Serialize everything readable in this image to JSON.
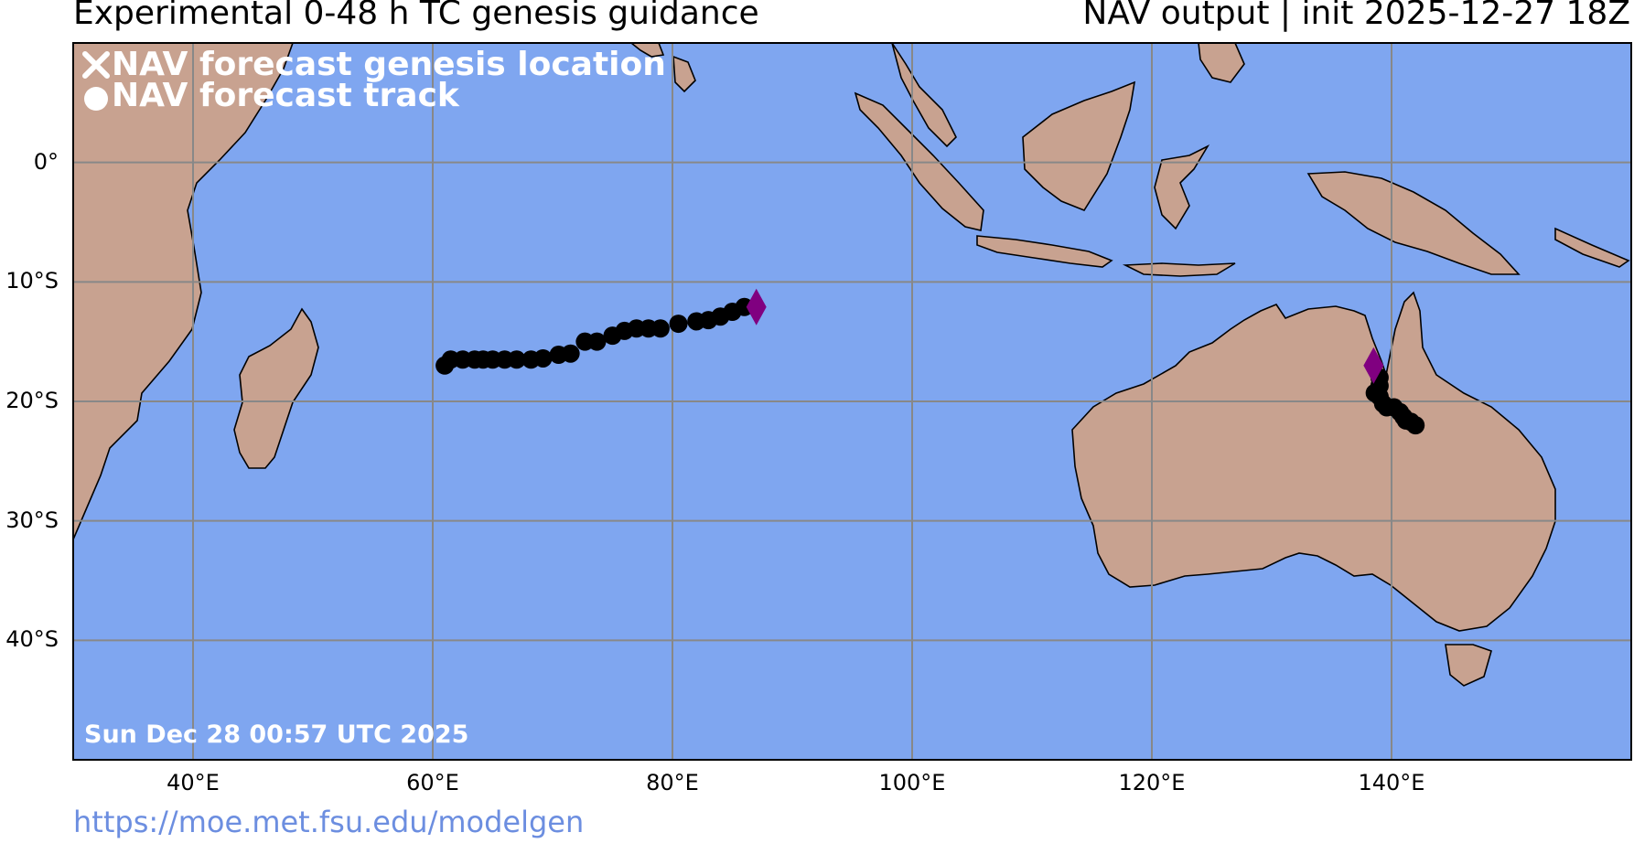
{
  "header": {
    "title_left": "Experimental 0-48 h TC genesis guidance",
    "title_right": "NAV output | init 2025-12-27 18Z"
  },
  "legend": {
    "genesis_label": "NAV forecast genesis location",
    "track_label": "NAV forecast track"
  },
  "timestamp": "Sun Dec 28 00:57 UTC 2025",
  "footer": {
    "url": "https://moe.met.fsu.edu/modelgen"
  },
  "map": {
    "lon_range": [
      30,
      160
    ],
    "lat_range": [
      -50,
      10
    ],
    "lat_ticks": [
      {
        "value": 0,
        "label": "0°"
      },
      {
        "value": -10,
        "label": "10°S"
      },
      {
        "value": -20,
        "label": "20°S"
      },
      {
        "value": -30,
        "label": "30°S"
      },
      {
        "value": -40,
        "label": "40°S"
      }
    ],
    "lon_ticks": [
      {
        "value": 40,
        "label": "40°E"
      },
      {
        "value": 60,
        "label": "60°E"
      },
      {
        "value": 80,
        "label": "80°E"
      },
      {
        "value": 100,
        "label": "100°E"
      },
      {
        "value": 120,
        "label": "120°E"
      },
      {
        "value": 140,
        "label": "140°E"
      }
    ],
    "colors": {
      "ocean": "#7fa6f0",
      "land": "#c8a290",
      "track": "#000000",
      "genesis_marker": "#800080",
      "grid": "#888888"
    },
    "tracks": [
      {
        "genesis": {
          "lon": 87.0,
          "lat": -12.1
        },
        "points": [
          [
            86.0,
            -12.1
          ],
          [
            85.0,
            -12.5
          ],
          [
            84.0,
            -12.9
          ],
          [
            83.0,
            -13.2
          ],
          [
            82.0,
            -13.3
          ],
          [
            80.5,
            -13.5
          ],
          [
            79.0,
            -13.9
          ],
          [
            78.0,
            -13.9
          ],
          [
            77.0,
            -13.9
          ],
          [
            76.0,
            -14.1
          ],
          [
            75.0,
            -14.5
          ],
          [
            73.7,
            -15.0
          ],
          [
            72.7,
            -15.0
          ],
          [
            71.5,
            -16.0
          ],
          [
            70.5,
            -16.1
          ],
          [
            69.2,
            -16.4
          ],
          [
            68.2,
            -16.5
          ],
          [
            67.0,
            -16.5
          ],
          [
            66.0,
            -16.5
          ],
          [
            65.0,
            -16.5
          ],
          [
            64.2,
            -16.5
          ],
          [
            63.5,
            -16.5
          ],
          [
            62.5,
            -16.5
          ],
          [
            61.5,
            -16.5
          ],
          [
            61.0,
            -17.0
          ]
        ]
      },
      {
        "genesis": {
          "lon": 138.5,
          "lat": -17.0
        },
        "points": [
          [
            139.0,
            -18.0
          ],
          [
            139.0,
            -18.7
          ],
          [
            138.6,
            -19.3
          ],
          [
            139.0,
            -19.6
          ],
          [
            139.3,
            -20.2
          ],
          [
            139.6,
            -20.5
          ],
          [
            140.2,
            -20.5
          ],
          [
            140.7,
            -20.9
          ],
          [
            141.0,
            -21.3
          ],
          [
            141.6,
            -21.7
          ],
          [
            142.0,
            -22.0
          ],
          [
            141.2,
            -21.6
          ]
        ]
      }
    ]
  }
}
